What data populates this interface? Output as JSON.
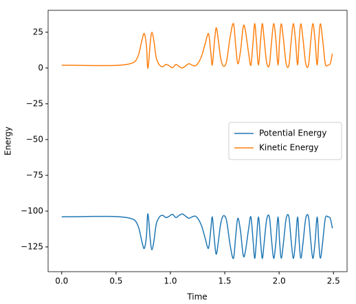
{
  "chart_data": {
    "type": "line",
    "xlabel": "Time",
    "ylabel": "Energy",
    "x": [
      0,
      0.1,
      0.2,
      0.3,
      0.4,
      0.5,
      0.6,
      0.65,
      0.68,
      0.71,
      0.74,
      0.76,
      0.78,
      0.79,
      0.8,
      0.815,
      0.83,
      0.85,
      0.87,
      0.9,
      0.93,
      0.96,
      0.99,
      1.02,
      1.05,
      1.08,
      1.11,
      1.14,
      1.17,
      1.2,
      1.23,
      1.26,
      1.29,
      1.32,
      1.35,
      1.37,
      1.385,
      1.4,
      1.42,
      1.44,
      1.46,
      1.48,
      1.5,
      1.52,
      1.55,
      1.58,
      1.6,
      1.62,
      1.645,
      1.67,
      1.69,
      1.72,
      1.74,
      1.76,
      1.775,
      1.79,
      1.81,
      1.83,
      1.845,
      1.86,
      1.885,
      1.91,
      1.93,
      1.95,
      1.97,
      1.99,
      2.005,
      2.02,
      2.04,
      2.065,
      2.09,
      2.11,
      2.13,
      2.15,
      2.17,
      2.185,
      2.2,
      2.22,
      2.245,
      2.27,
      2.29,
      2.31,
      2.33,
      2.35,
      2.365,
      2.38,
      2.4,
      2.425,
      2.45,
      2.47,
      2.485,
      2.49
    ],
    "series": [
      {
        "name": "Potential Energy",
        "color": "#1f77b4",
        "values": [
          -104,
          -103.9,
          -103.8,
          -103.7,
          -103.7,
          -103.8,
          -104.5,
          -105.5,
          -107,
          -112,
          -122,
          -126,
          -117,
          -102.5,
          -106,
          -120,
          -127,
          -120,
          -109,
          -104,
          -103,
          -104.5,
          -103.5,
          -102.2,
          -104.5,
          -103,
          -102,
          -103.5,
          -105,
          -104,
          -103.5,
          -106,
          -111,
          -119,
          -126,
          -114,
          -104,
          -116,
          -130,
          -122,
          -110,
          -104,
          -103.5,
          -108,
          -124,
          -133,
          -118,
          -105,
          -114,
          -131,
          -128,
          -112,
          -104,
          -120,
          -133,
          -122,
          -104,
          -122,
          -133,
          -124,
          -106,
          -104,
          -120,
          -133,
          -122,
          -104,
          -122,
          -133,
          -122,
          -105,
          -104,
          -120,
          -133,
          -122,
          -104,
          -122,
          -133,
          -122,
          -105,
          -104,
          -120,
          -133,
          -122,
          -104,
          -122,
          -133,
          -122,
          -105,
          -104,
          -105,
          -110,
          -112
        ]
      },
      {
        "name": "Kinetic Energy",
        "color": "#ff7f0e",
        "values": [
          2,
          1.9,
          1.8,
          1.7,
          1.7,
          1.8,
          2.5,
          3.5,
          5,
          10,
          20,
          24,
          15,
          0.5,
          4,
          18,
          25,
          18,
          7,
          2,
          1,
          2.5,
          1.5,
          0.2,
          2.5,
          1,
          0,
          1.5,
          3,
          2,
          1.5,
          4,
          9,
          17,
          24,
          12,
          2,
          14,
          28,
          20,
          8,
          2,
          1.5,
          6,
          22,
          31,
          16,
          3,
          12,
          29,
          26,
          10,
          2,
          18,
          31,
          20,
          2,
          20,
          31,
          22,
          4,
          2,
          18,
          31,
          20,
          2,
          20,
          31,
          20,
          3,
          2,
          18,
          31,
          20,
          2,
          20,
          31,
          20,
          3,
          2,
          18,
          31,
          20,
          2,
          20,
          31,
          20,
          3,
          2,
          3,
          8,
          10
        ]
      }
    ],
    "xlim": [
      -0.125,
      2.625
    ],
    "ylim": [
      -142.3,
      40.3
    ],
    "xticks": [
      {
        "value": 0,
        "label": "0.0"
      },
      {
        "value": 0.5,
        "label": "0.5"
      },
      {
        "value": 1,
        "label": "1.0"
      },
      {
        "value": 1.5,
        "label": "1.5"
      },
      {
        "value": 2,
        "label": "2.0"
      },
      {
        "value": 2.5,
        "label": "2.5"
      }
    ],
    "yticks": [
      25,
      0,
      {
        "value": -25,
        "label": "−25"
      },
      {
        "value": -50,
        "label": "−50"
      },
      {
        "value": -75,
        "label": "−75"
      },
      {
        "value": -100,
        "label": "−100"
      },
      {
        "value": -125,
        "label": "−125"
      }
    ],
    "legend": "center right",
    "grid": false
  }
}
